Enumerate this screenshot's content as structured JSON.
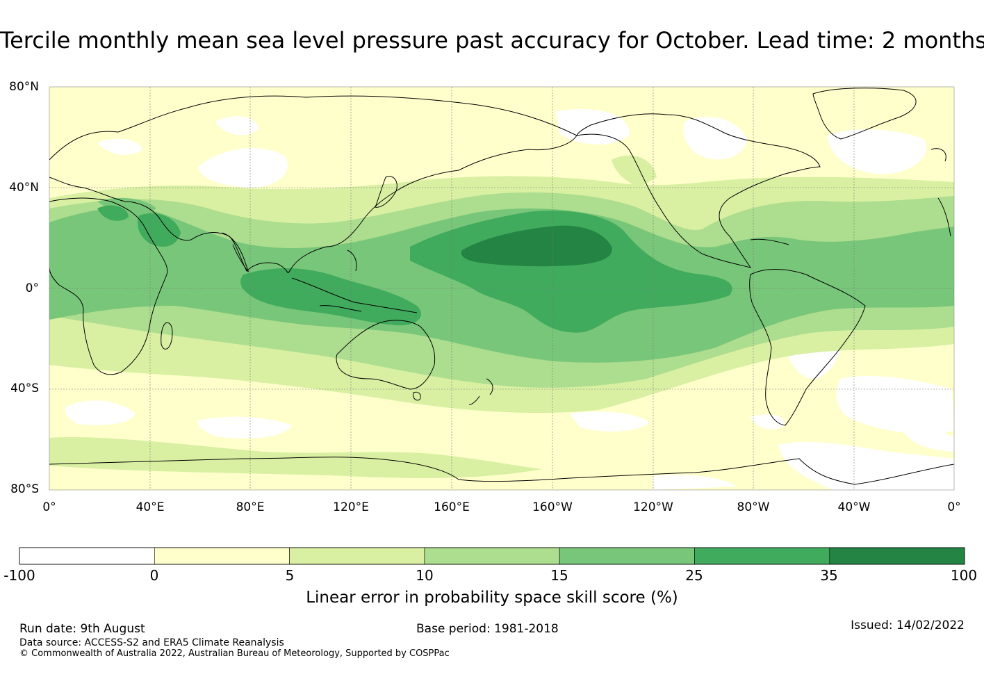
{
  "title": "Tercile monthly mean sea level pressure past accuracy for October. Lead time: 2 months",
  "map": {
    "lat_labels": [
      "80°N",
      "40°N",
      "0°",
      "40°S",
      "80°S"
    ],
    "lon_labels": [
      "0°",
      "40°E",
      "80°E",
      "120°E",
      "160°E",
      "160°W",
      "120°W",
      "80°W",
      "40°W",
      "0°"
    ],
    "grid_lines": true
  },
  "colorbar": {
    "ticks": [
      "-100",
      "0",
      "5",
      "10",
      "15",
      "25",
      "35",
      "100"
    ],
    "colors": [
      "#ffffff",
      "#ffffcc",
      "#d9f0a3",
      "#addd8e",
      "#78c679",
      "#41ab5d",
      "#238443"
    ],
    "caption": "Linear error in probability space skill score (%)"
  },
  "footer": {
    "run_date": "Run date: 9th August",
    "base_period": "Base period: 1981-2018",
    "issued": "Issued: 14/02/2022",
    "data_source": "Data source: ACCESS-S2 and ERA5 Climate Reanalysis",
    "copyright": "© Commonwealth of Australia 2022, Australian Bureau of Meteorology, Supported by COSPPac"
  }
}
